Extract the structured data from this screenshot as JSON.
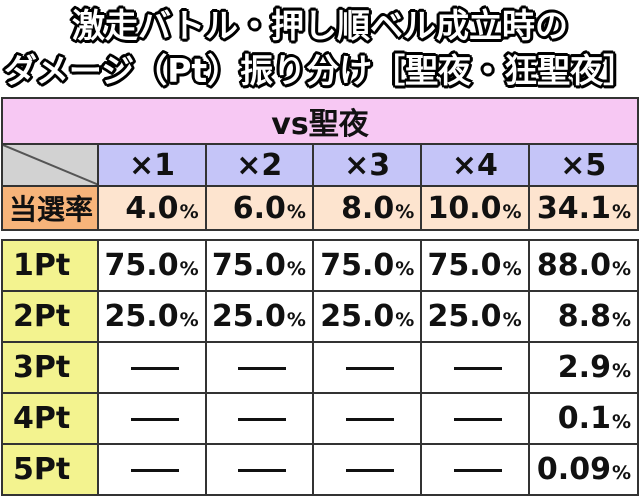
{
  "title": {
    "line1": "激走バトル・押し順ベル成立時の",
    "line2": "ダメージ（Pt）振り分け［聖夜・狂聖夜］"
  },
  "mode_header": "vs聖夜",
  "multipliers": [
    "×1",
    "×2",
    "×3",
    "×4",
    "×5"
  ],
  "rate_label": "当選率",
  "rates": [
    {
      "num": "4.0",
      "unit": "%"
    },
    {
      "num": "6.0",
      "unit": "%"
    },
    {
      "num": "8.0",
      "unit": "%"
    },
    {
      "num": "10.0",
      "unit": "%"
    },
    {
      "num": "34.1",
      "unit": "%"
    }
  ],
  "rows": [
    {
      "label": "1Pt",
      "values": [
        {
          "num": "75.0",
          "unit": "%"
        },
        {
          "num": "75.0",
          "unit": "%"
        },
        {
          "num": "75.0",
          "unit": "%"
        },
        {
          "num": "75.0",
          "unit": "%"
        },
        {
          "num": "88.0",
          "unit": "%"
        }
      ]
    },
    {
      "label": "2Pt",
      "values": [
        {
          "num": "25.0",
          "unit": "%"
        },
        {
          "num": "25.0",
          "unit": "%"
        },
        {
          "num": "25.0",
          "unit": "%"
        },
        {
          "num": "25.0",
          "unit": "%"
        },
        {
          "num": "8.8",
          "unit": "%"
        }
      ]
    },
    {
      "label": "3Pt",
      "values": [
        {
          "dash": true
        },
        {
          "dash": true
        },
        {
          "dash": true
        },
        {
          "dash": true
        },
        {
          "num": "2.9",
          "unit": "%"
        }
      ]
    },
    {
      "label": "4Pt",
      "values": [
        {
          "dash": true
        },
        {
          "dash": true
        },
        {
          "dash": true
        },
        {
          "dash": true
        },
        {
          "num": "0.1",
          "unit": "%"
        }
      ]
    },
    {
      "label": "5Pt",
      "values": [
        {
          "dash": true
        },
        {
          "dash": true
        },
        {
          "dash": true
        },
        {
          "dash": true
        },
        {
          "num": "0.09",
          "unit": "%"
        }
      ]
    }
  ],
  "colors": {
    "mode_header": "#f7c8f3",
    "multiplier_header": "#c5c5f8",
    "rate_label": "#f7b47a",
    "rate_values": "#fde4cf",
    "pt_label": "#f3f38f"
  }
}
